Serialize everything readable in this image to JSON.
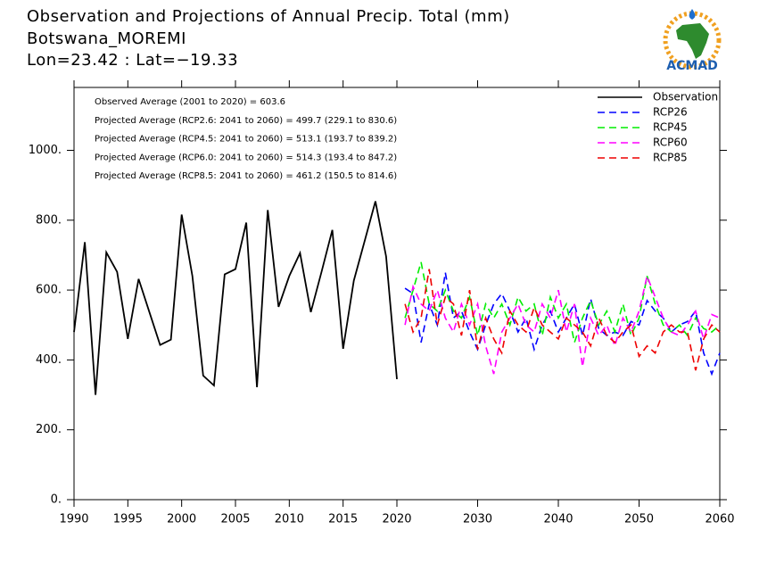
{
  "chart_data": {
    "type": "line",
    "title": "Observation and Projections of Annual Precip. Total (mm)",
    "subtitle": "Botswana_MOREMI",
    "location": "Lon=23.42 : Lat=−19.33",
    "logo": "ACMAD",
    "annotations": [
      "Observed Average (2001 to 2020) = 603.6",
      "Projected Average (RCP2.6: 2041 to 2060) = 499.7 (229.1 to 830.6)",
      "Projected Average (RCP4.5: 2041 to 2060) = 513.1 (193.7 to 839.2)",
      "Projected Average (RCP6.0: 2041 to 2060) = 514.3 (193.4 to 847.2)",
      "Projected Average (RCP8.5: 2041 to 2060) = 461.2 (150.5 to 814.6)"
    ],
    "xsegments": [
      [
        1990,
        2020
      ],
      [
        2020,
        2060
      ]
    ],
    "xticks": [
      1990,
      1995,
      2000,
      2005,
      2010,
      2015,
      2020,
      2030,
      2040,
      2050,
      2060
    ],
    "ylim": [
      0,
      1180
    ],
    "yticks": [
      {
        "value": 0,
        "label": "0."
      },
      {
        "value": 200,
        "label": "200."
      },
      {
        "value": 400,
        "label": "400."
      },
      {
        "value": 600,
        "label": "600."
      },
      {
        "value": 800,
        "label": "800."
      },
      {
        "value": 1000,
        "label": "1000."
      }
    ],
    "legend": "upper right",
    "series": [
      {
        "name": "Observation",
        "color": "#000000",
        "dashed": false,
        "x": [
          1990,
          1991,
          1992,
          1993,
          1994,
          1995,
          1996,
          1997,
          1998,
          1999,
          2000,
          2001,
          2002,
          2003,
          2004,
          2005,
          2006,
          2007,
          2008,
          2009,
          2010,
          2011,
          2012,
          2013,
          2014,
          2015,
          2016,
          2017,
          2018,
          2019,
          2020
        ],
        "values": [
          480,
          737,
          300,
          708,
          652,
          460,
          632,
          537,
          443,
          458,
          816,
          640,
          355,
          327,
          645,
          660,
          793,
          322,
          829,
          552,
          640,
          706,
          537,
          652,
          772,
          432,
          627,
          740,
          854,
          696,
          345
        ]
      },
      {
        "name": "RCP26",
        "color": "#0000ff",
        "dashed": true,
        "x": [
          2021,
          2022,
          2023,
          2024,
          2025,
          2026,
          2027,
          2028,
          2029,
          2030,
          2031,
          2032,
          2033,
          2034,
          2035,
          2036,
          2037,
          2038,
          2039,
          2040,
          2041,
          2042,
          2043,
          2044,
          2045,
          2046,
          2047,
          2048,
          2049,
          2050,
          2051,
          2052,
          2053,
          2054,
          2055,
          2056,
          2057,
          2058,
          2059,
          2060
        ],
        "values": [
          605,
          590,
          450,
          560,
          500,
          650,
          520,
          540,
          480,
          430,
          500,
          560,
          590,
          540,
          480,
          520,
          430,
          500,
          540,
          480,
          520,
          560,
          470,
          575,
          490,
          470,
          480,
          470,
          510,
          500,
          570,
          540,
          520,
          480,
          500,
          510,
          540,
          420,
          360,
          420
        ]
      },
      {
        "name": "RCP45",
        "color": "#00ee00",
        "dashed": true,
        "x": [
          2021,
          2022,
          2023,
          2024,
          2025,
          2026,
          2027,
          2028,
          2029,
          2030,
          2031,
          2032,
          2033,
          2034,
          2035,
          2036,
          2037,
          2038,
          2039,
          2040,
          2041,
          2042,
          2043,
          2044,
          2045,
          2046,
          2047,
          2048,
          2049,
          2050,
          2051,
          2052,
          2053,
          2054,
          2055,
          2056,
          2057,
          2058,
          2059,
          2060
        ],
        "values": [
          520,
          600,
          680,
          560,
          540,
          600,
          540,
          520,
          580,
          470,
          560,
          520,
          560,
          500,
          580,
          540,
          560,
          470,
          580,
          520,
          560,
          450,
          520,
          570,
          500,
          540,
          480,
          560,
          470,
          520,
          640,
          560,
          500,
          480,
          500,
          470,
          520,
          490,
          480,
          500
        ]
      },
      {
        "name": "RCP60",
        "color": "#ff00ff",
        "dashed": true,
        "x": [
          2021,
          2022,
          2023,
          2024,
          2025,
          2026,
          2027,
          2028,
          2029,
          2030,
          2031,
          2032,
          2033,
          2034,
          2035,
          2036,
          2037,
          2038,
          2039,
          2040,
          2041,
          2042,
          2043,
          2044,
          2045,
          2046,
          2047,
          2048,
          2049,
          2050,
          2051,
          2052,
          2053,
          2054,
          2055,
          2056,
          2057,
          2058,
          2059,
          2060
        ],
        "values": [
          500,
          610,
          560,
          540,
          600,
          520,
          480,
          560,
          500,
          560,
          440,
          360,
          480,
          520,
          560,
          500,
          480,
          560,
          520,
          600,
          480,
          560,
          380,
          520,
          470,
          500,
          440,
          520,
          480,
          540,
          640,
          580,
          520,
          480,
          470,
          500,
          540,
          460,
          530,
          520
        ]
      },
      {
        "name": "RCP85",
        "color": "#ee0000",
        "dashed": true,
        "x": [
          2021,
          2022,
          2023,
          2024,
          2025,
          2026,
          2027,
          2028,
          2029,
          2030,
          2031,
          2032,
          2033,
          2034,
          2035,
          2036,
          2037,
          2038,
          2039,
          2040,
          2041,
          2042,
          2043,
          2044,
          2045,
          2046,
          2047,
          2048,
          2049,
          2050,
          2051,
          2052,
          2053,
          2054,
          2055,
          2056,
          2057,
          2058,
          2059,
          2060
        ],
        "values": [
          560,
          480,
          520,
          660,
          500,
          580,
          560,
          470,
          600,
          430,
          520,
          460,
          420,
          540,
          500,
          480,
          550,
          500,
          480,
          460,
          520,
          500,
          480,
          440,
          520,
          470,
          450,
          480,
          500,
          410,
          440,
          420,
          480,
          500,
          480,
          480,
          370,
          460,
          500,
          480
        ]
      }
    ]
  }
}
